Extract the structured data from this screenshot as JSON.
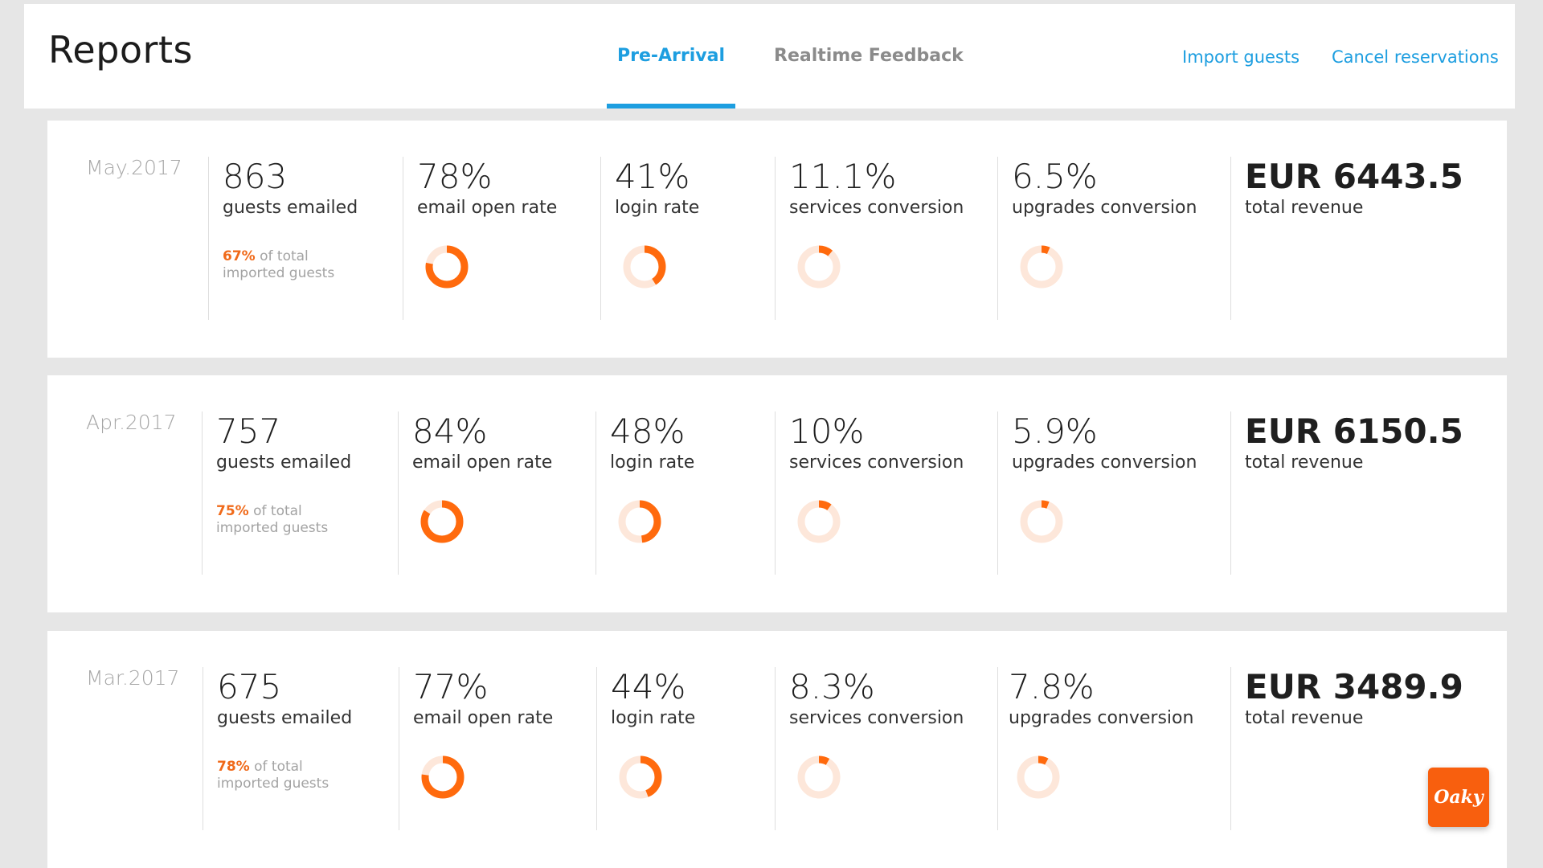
{
  "header": {
    "title": "Reports",
    "tabs": [
      {
        "label": "Pre-Arrival",
        "active": true
      },
      {
        "label": "Realtime Feedback",
        "active": false
      }
    ],
    "links": [
      "Import guests",
      "Cancel reservations"
    ]
  },
  "colors": {
    "accent_blue": "#1d9ee0",
    "accent_orange": "#ff6a0d",
    "donut_track": "#fde7da"
  },
  "reports": [
    {
      "month": "May.2017",
      "guests_emailed": {
        "value": "863",
        "label": "guests emailed",
        "imported_pct": "67%",
        "imported_text": "of total imported guests"
      },
      "email_open_rate": {
        "value": "78%",
        "label": "email open rate",
        "fraction": 0.78
      },
      "login_rate": {
        "value": "41%",
        "label": "login rate",
        "fraction": 0.41
      },
      "services_conversion": {
        "value": "11.1%",
        "label": "services conversion",
        "fraction": 0.111
      },
      "upgrades_conversion": {
        "value": "6.5%",
        "label": "upgrades conversion",
        "fraction": 0.065
      },
      "total_revenue": {
        "value": "EUR 6443.5",
        "label": "total revenue"
      }
    },
    {
      "month": "Apr.2017",
      "guests_emailed": {
        "value": "757",
        "label": "guests emailed",
        "imported_pct": "75%",
        "imported_text": "of total imported guests"
      },
      "email_open_rate": {
        "value": "84%",
        "label": "email open rate",
        "fraction": 0.84
      },
      "login_rate": {
        "value": "48%",
        "label": "login rate",
        "fraction": 0.48
      },
      "services_conversion": {
        "value": "10%",
        "label": "services conversion",
        "fraction": 0.1
      },
      "upgrades_conversion": {
        "value": "5.9%",
        "label": "upgrades conversion",
        "fraction": 0.059
      },
      "total_revenue": {
        "value": "EUR 6150.5",
        "label": "total revenue"
      }
    },
    {
      "month": "Mar.2017",
      "guests_emailed": {
        "value": "675",
        "label": "guests emailed",
        "imported_pct": "78%",
        "imported_text": "of total imported guests"
      },
      "email_open_rate": {
        "value": "77%",
        "label": "email open rate",
        "fraction": 0.77
      },
      "login_rate": {
        "value": "44%",
        "label": "login rate",
        "fraction": 0.44
      },
      "services_conversion": {
        "value": "8.3%",
        "label": "services conversion",
        "fraction": 0.083
      },
      "upgrades_conversion": {
        "value": "7.8%",
        "label": "upgrades conversion",
        "fraction": 0.078
      },
      "total_revenue": {
        "value": "EUR 3489.9",
        "label": "total revenue"
      }
    }
  ],
  "logo": {
    "text": "Oaky",
    "icon": "oaky-logo-icon"
  }
}
